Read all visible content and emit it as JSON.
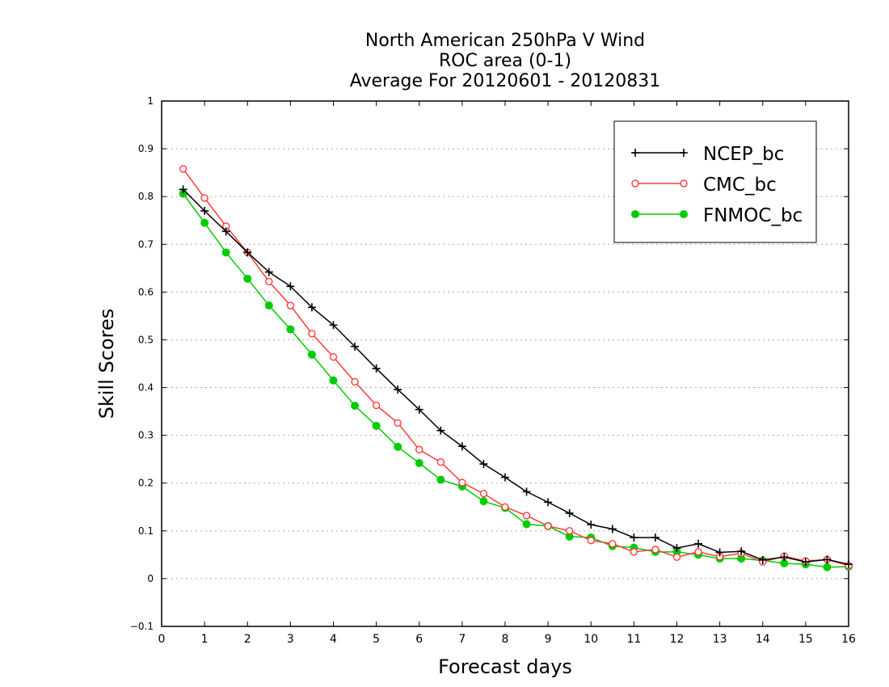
{
  "chart_data": {
    "type": "line",
    "title_lines": [
      "North American 250hPa V Wind",
      "ROC area (0-1)",
      "Average For 20120601 - 20120831"
    ],
    "xlabel": "Forecast days",
    "ylabel": "Skill Scores",
    "xlim": [
      0,
      16
    ],
    "ylim": [
      -0.1,
      1
    ],
    "xticks": [
      "0",
      "1",
      "2",
      "3",
      "4",
      "5",
      "6",
      "7",
      "8",
      "9",
      "10",
      "11",
      "12",
      "13",
      "14",
      "15",
      "16"
    ],
    "yticks": [
      "−0.1",
      "0",
      "0.1",
      "0.2",
      "0.3",
      "0.4",
      "0.5",
      "0.6",
      "0.7",
      "0.8",
      "0.9",
      "1"
    ],
    "grid": "horizontal dotted",
    "legend_position": "top-right",
    "x": [
      0.5,
      1,
      1.5,
      2,
      2.5,
      3,
      3.5,
      4,
      4.5,
      5,
      5.5,
      6,
      6.5,
      7,
      7.5,
      8,
      8.5,
      9,
      9.5,
      10,
      10.5,
      11,
      11.5,
      12,
      12.5,
      13,
      13.5,
      14,
      14.5,
      15,
      15.5,
      16
    ],
    "series": [
      {
        "name": "NCEP_bc",
        "color": "#000000",
        "marker": "plus",
        "values": [
          0.815,
          0.77,
          0.727,
          0.683,
          0.642,
          0.612,
          0.568,
          0.531,
          0.486,
          0.44,
          0.396,
          0.354,
          0.31,
          0.277,
          0.24,
          0.212,
          0.182,
          0.16,
          0.137,
          0.113,
          0.104,
          0.086,
          0.086,
          0.064,
          0.073,
          0.055,
          0.057,
          0.039,
          0.045,
          0.035,
          0.04,
          0.03
        ]
      },
      {
        "name": "CMC_bc",
        "color": "#ff3b3b",
        "marker": "open-circle",
        "values": [
          0.858,
          0.797,
          0.738,
          0.683,
          0.622,
          0.572,
          0.513,
          0.464,
          0.412,
          0.363,
          0.326,
          0.27,
          0.244,
          0.201,
          0.178,
          0.15,
          0.132,
          0.11,
          0.1,
          0.08,
          0.073,
          0.056,
          0.061,
          0.045,
          0.056,
          0.046,
          0.053,
          0.035,
          0.047,
          0.037,
          0.04,
          0.027
        ]
      },
      {
        "name": "FNMOC_bc",
        "color": "#00cc00",
        "marker": "filled-circle",
        "values": [
          0.806,
          0.745,
          0.683,
          0.628,
          0.572,
          0.522,
          0.469,
          0.415,
          0.362,
          0.32,
          0.276,
          0.242,
          0.207,
          0.193,
          0.162,
          0.148,
          0.114,
          0.11,
          0.088,
          0.086,
          0.068,
          0.065,
          0.056,
          0.056,
          0.05,
          0.042,
          0.042,
          0.038,
          0.032,
          0.03,
          0.024,
          0.025
        ]
      }
    ]
  }
}
